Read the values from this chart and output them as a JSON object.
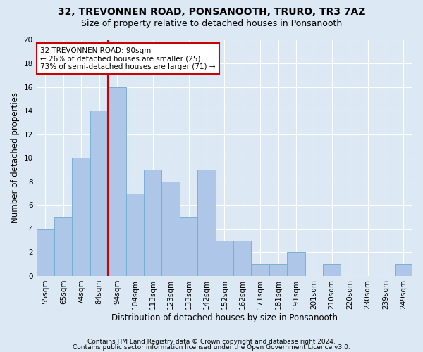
{
  "title_line1": "32, TREVONNEN ROAD, PONSANOOTH, TRURO, TR3 7AZ",
  "title_line2": "Size of property relative to detached houses in Ponsanooth",
  "xlabel": "Distribution of detached houses by size in Ponsanooth",
  "ylabel": "Number of detached properties",
  "categories": [
    "55sqm",
    "65sqm",
    "74sqm",
    "84sqm",
    "94sqm",
    "104sqm",
    "113sqm",
    "123sqm",
    "133sqm",
    "142sqm",
    "152sqm",
    "162sqm",
    "171sqm",
    "181sqm",
    "191sqm",
    "201sqm",
    "210sqm",
    "220sqm",
    "230sqm",
    "239sqm",
    "249sqm"
  ],
  "values": [
    4,
    5,
    10,
    14,
    16,
    7,
    9,
    8,
    5,
    9,
    3,
    3,
    1,
    1,
    2,
    0,
    1,
    0,
    0,
    0,
    1
  ],
  "bar_color": "#aec6e8",
  "bar_edge_color": "#7aafd4",
  "vline_color": "#cc0000",
  "vline_index": 3.5,
  "annotation_text": "32 TREVONNEN ROAD: 90sqm\n← 26% of detached houses are smaller (25)\n73% of semi-detached houses are larger (71) →",
  "annotation_box_color": "#ffffff",
  "annotation_box_edge": "#cc0000",
  "ylim": [
    0,
    20
  ],
  "yticks": [
    0,
    2,
    4,
    6,
    8,
    10,
    12,
    14,
    16,
    18,
    20
  ],
  "footer_line1": "Contains HM Land Registry data © Crown copyright and database right 2024.",
  "footer_line2": "Contains public sector information licensed under the Open Government Licence v3.0.",
  "background_color": "#dce9f5",
  "plot_background_color": "#dce9f5",
  "grid_color": "#ffffff",
  "title_fontsize": 10,
  "subtitle_fontsize": 9,
  "axis_label_fontsize": 8.5,
  "tick_fontsize": 7.5,
  "annotation_fontsize": 7.5,
  "footer_fontsize": 6.5
}
